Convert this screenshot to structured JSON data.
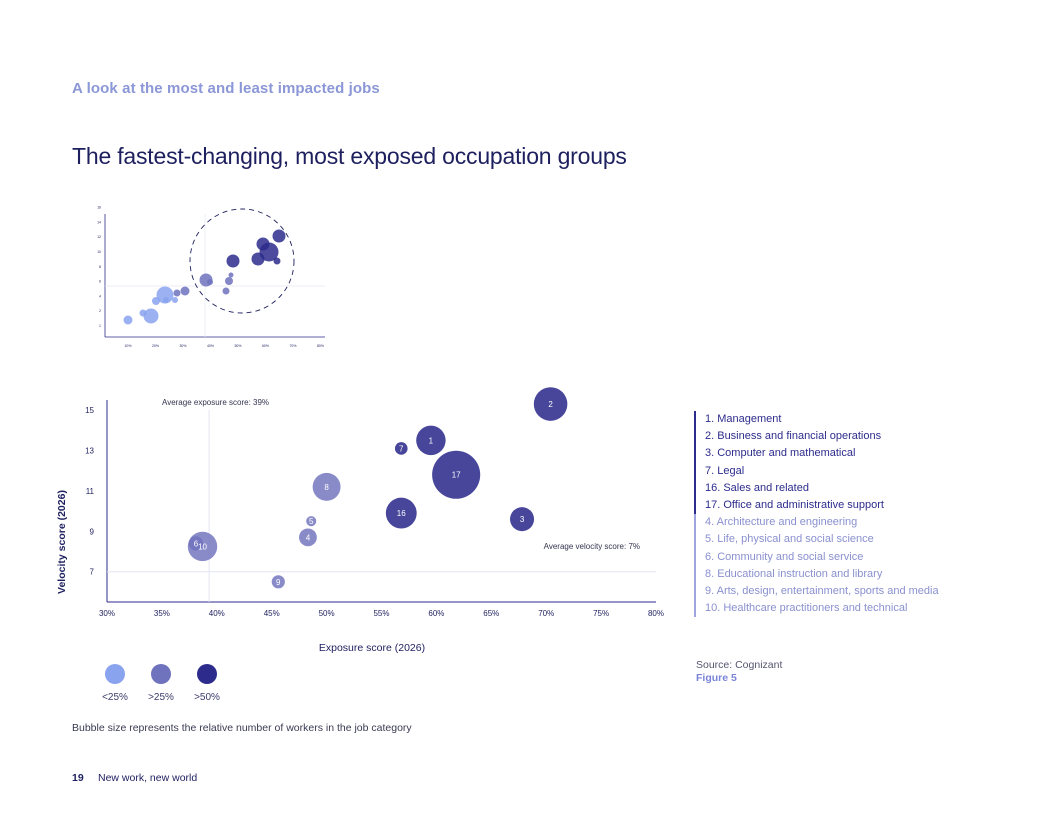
{
  "header": {
    "section_title": "A look at the most and least impacted jobs",
    "main_title": "The fastest-changing, most exposed occupation groups"
  },
  "colors": {
    "under25": "#8aa3ef",
    "over25": "#6f72bd",
    "over50": "#2d2c8c",
    "axis": "#2d2c8c"
  },
  "chart_data": {
    "type": "scatter",
    "title": "The fastest-changing, most exposed occupation groups",
    "xlabel": "Exposure score (2026)",
    "ylabel": "Velocity score (2026)",
    "xlim": [
      30,
      80
    ],
    "ylim": [
      5.5,
      15.5
    ],
    "x_ticks": [
      "30%",
      "35%",
      "40%",
      "45%",
      "50%",
      "55%",
      "60%",
      "65%",
      "70%",
      "75%",
      "80%"
    ],
    "y_ticks": [
      "7",
      "9",
      "11",
      "13",
      "15"
    ],
    "avg_exposure_label": "Average exposure score: 39%",
    "avg_velocity_label": "Average velocity score: 7%",
    "avg_exposure": 39.3,
    "avg_velocity": 7,
    "points": [
      {
        "id": "1",
        "x": 59.5,
        "y": 13.5,
        "size": 3.0,
        "group": "over50"
      },
      {
        "id": "2",
        "x": 70.4,
        "y": 15.3,
        "size": 3.9,
        "group": "over50"
      },
      {
        "id": "3",
        "x": 67.8,
        "y": 9.6,
        "size": 2.0,
        "group": "over50"
      },
      {
        "id": "7",
        "x": 56.8,
        "y": 13.1,
        "size": 0.55,
        "group": "over50"
      },
      {
        "id": "16",
        "x": 56.8,
        "y": 9.9,
        "size": 3.3,
        "group": "over50"
      },
      {
        "id": "17",
        "x": 61.8,
        "y": 11.8,
        "size": 8.0,
        "group": "over50"
      },
      {
        "id": "8",
        "x": 50.0,
        "y": 11.2,
        "size": 2.7,
        "group": "over25"
      },
      {
        "id": "4",
        "x": 48.3,
        "y": 8.7,
        "size": 1.1,
        "group": "over25"
      },
      {
        "id": "5",
        "x": 48.6,
        "y": 9.5,
        "size": 0.35,
        "group": "over25"
      },
      {
        "id": "9",
        "x": 45.6,
        "y": 6.5,
        "size": 0.6,
        "group": "over25"
      },
      {
        "id": "6",
        "x": 38.1,
        "y": 8.4,
        "size": 0.7,
        "group": "over25"
      },
      {
        "id": "10",
        "x": 38.7,
        "y": 8.25,
        "size": 3.0,
        "group": "over25"
      }
    ],
    "overview": {
      "x_ticks": [
        "10%",
        "20%",
        "30%",
        "40%",
        "50%",
        "60%",
        "70%",
        "80%"
      ],
      "y_ticks": [
        "1",
        "2",
        "4",
        "6",
        "8",
        "10",
        "12",
        "14",
        "16"
      ]
    }
  },
  "legend": {
    "dark_items": [
      "1. Management",
      "2. Business and financial operations",
      "3. Computer and mathematical",
      "7. Legal",
      "16. Sales and related",
      "17. Office and administrative support"
    ],
    "light_items": [
      "4. Architecture and engineering",
      "5. Life, physical and social science",
      "6. Community and social service",
      "8. Educational instruction and library",
      "9. Arts, design, entertainment, sports and media",
      "10. Healthcare practitioners and technical"
    ]
  },
  "color_key": {
    "under25": "<25%",
    "over25": ">25%",
    "over50": ">50%"
  },
  "source": "Source: Cognizant",
  "figure": "Figure 5",
  "bubble_note": "Bubble size represents the relative number of workers in the job category",
  "footer": {
    "page": "19",
    "text": "New work, new world"
  }
}
